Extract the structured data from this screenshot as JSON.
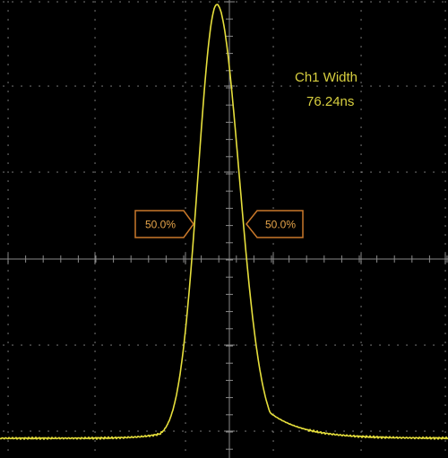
{
  "measurement": {
    "label": "Ch1 Width",
    "value": "76.24ns"
  },
  "markers": {
    "left_label": "50.0%",
    "right_label": "50.0%"
  },
  "colors": {
    "background": "#000000",
    "trace": "#e6df3c",
    "graticule": "#8a8a8a",
    "measurement_text": "#d8cf3f",
    "marker": "#c9782a",
    "marker_text": "#e6a44a"
  },
  "icons": {
    "left_marker": "arrow-tag-pointing-right",
    "right_marker": "arrow-tag-pointing-left"
  }
}
